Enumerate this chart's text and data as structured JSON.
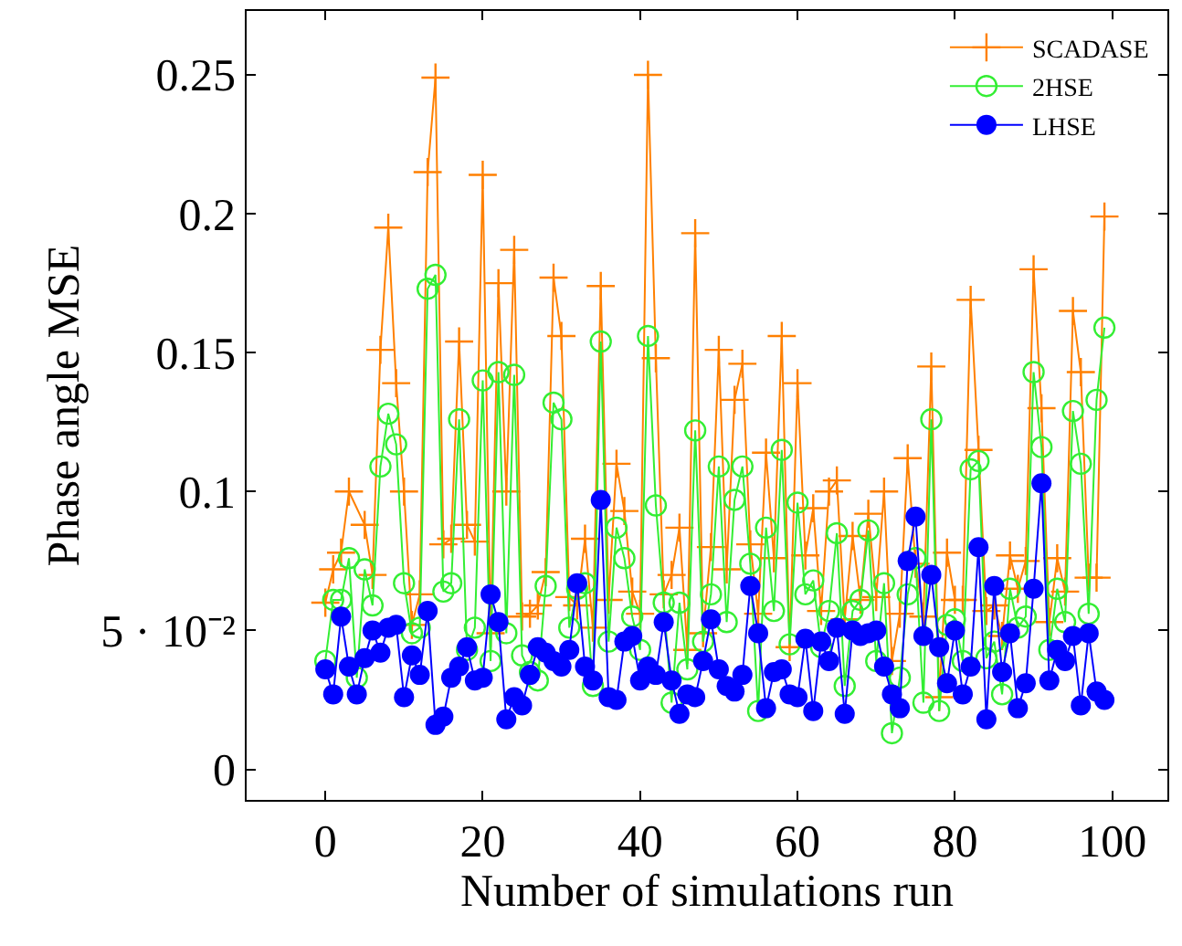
{
  "chart_data": {
    "type": "line",
    "xlabel": "Number of simulations run",
    "ylabel": "Phase angle MSE",
    "x": [
      0,
      1,
      2,
      3,
      4,
      5,
      6,
      7,
      8,
      9,
      10,
      11,
      12,
      13,
      14,
      15,
      16,
      17,
      18,
      19,
      20,
      21,
      22,
      23,
      24,
      25,
      26,
      27,
      28,
      29,
      30,
      31,
      32,
      33,
      34,
      35,
      36,
      37,
      38,
      39,
      40,
      41,
      42,
      43,
      44,
      45,
      46,
      47,
      48,
      49,
      50,
      51,
      52,
      53,
      54,
      55,
      56,
      57,
      58,
      59,
      60,
      61,
      62,
      63,
      64,
      65,
      66,
      67,
      68,
      69,
      70,
      71,
      72,
      73,
      74,
      75,
      76,
      77,
      78,
      79,
      80,
      81,
      82,
      83,
      84,
      85,
      86,
      87,
      88,
      89,
      90,
      91,
      92,
      93,
      94,
      95,
      96,
      97,
      98,
      99
    ],
    "xlim": [
      -10,
      107
    ],
    "xticks": [
      0,
      20,
      40,
      60,
      80,
      100
    ],
    "ylim": [
      -0.011,
      0.273
    ],
    "yticks": [
      0,
      {
        "value": 0.05,
        "label": "5 · 10⁻²"
      },
      0.1,
      0.15,
      0.2,
      0.25
    ],
    "legend": "top right",
    "series": [
      {
        "name": "SCADASE",
        "color": "#ff8000",
        "marker": "cross",
        "values": [
          0.06,
          0.072,
          0.078,
          0.1,
          null,
          0.088,
          0.07,
          0.151,
          0.195,
          0.139,
          0.1,
          0.052,
          0.063,
          0.215,
          0.249,
          0.081,
          0.083,
          0.154,
          0.088,
          0.082,
          0.214,
          0.049,
          0.175,
          0.1,
          0.187,
          0.055,
          0.056,
          0.059,
          0.071,
          0.177,
          0.156,
          0.062,
          0.059,
          0.083,
          0.051,
          0.174,
          0.061,
          0.11,
          0.093,
          0.064,
          0.056,
          0.25,
          0.148,
          0.063,
          0.07,
          0.087,
          0.043,
          0.193,
          0.049,
          0.08,
          0.151,
          0.072,
          0.133,
          0.146,
          0.081,
          0.056,
          0.114,
          0.076,
          0.156,
          0.044,
          0.139,
          0.077,
          0.094,
          0.057,
          0.1,
          0.104,
          0.054,
          0.084,
          0.061,
          0.092,
          0.062,
          0.1,
          0.039,
          0.056,
          0.112,
          0.074,
          0.055,
          0.145,
          0.026,
          0.078,
          0.061,
          0.061,
          0.169,
          0.115,
          0.057,
          0.059,
          0.048,
          0.077,
          0.065,
          0.075,
          0.18,
          0.13,
          0.053,
          0.076,
          0.064,
          0.165,
          0.143,
          0.069,
          0.069,
          0.199
        ]
      },
      {
        "name": "2HSE",
        "color": "#33ee33",
        "marker": "circle-open",
        "values": [
          0.039,
          0.061,
          0.061,
          0.076,
          0.033,
          0.072,
          0.059,
          0.109,
          0.128,
          0.117,
          0.067,
          0.049,
          0.051,
          0.173,
          0.178,
          0.064,
          0.067,
          0.126,
          0.043,
          0.051,
          0.14,
          0.039,
          0.143,
          0.049,
          0.142,
          0.041,
          0.035,
          0.032,
          0.066,
          0.132,
          0.126,
          0.051,
          0.065,
          0.067,
          0.03,
          0.154,
          0.046,
          0.087,
          0.076,
          0.055,
          0.043,
          0.156,
          0.095,
          0.06,
          0.024,
          0.06,
          0.036,
          0.122,
          0.046,
          0.063,
          0.109,
          0.053,
          0.097,
          0.109,
          0.074,
          0.021,
          0.087,
          0.057,
          0.115,
          0.045,
          0.096,
          0.063,
          0.068,
          0.044,
          0.057,
          0.085,
          0.03,
          0.057,
          0.061,
          0.086,
          0.039,
          0.067,
          0.013,
          0.033,
          0.063,
          0.076,
          0.024,
          0.126,
          0.021,
          0.052,
          0.054,
          0.039,
          0.108,
          0.111,
          0.04,
          0.046,
          0.027,
          0.065,
          0.051,
          0.055,
          0.143,
          0.116,
          0.043,
          0.065,
          0.053,
          0.129,
          0.11,
          0.056,
          0.133,
          0.159
        ]
      },
      {
        "name": "LHSE",
        "color": "#0000ff",
        "marker": "circle",
        "values": [
          0.036,
          0.027,
          0.055,
          0.037,
          0.027,
          0.04,
          0.05,
          0.042,
          0.051,
          0.052,
          0.026,
          0.041,
          0.034,
          0.057,
          0.016,
          0.019,
          0.033,
          0.037,
          0.044,
          0.032,
          0.033,
          0.063,
          0.053,
          0.018,
          0.026,
          0.023,
          0.034,
          0.044,
          0.042,
          0.039,
          0.037,
          0.043,
          0.067,
          0.037,
          0.032,
          0.097,
          0.026,
          0.025,
          0.046,
          0.048,
          0.032,
          0.037,
          0.034,
          0.053,
          0.032,
          0.02,
          0.027,
          0.026,
          0.039,
          0.054,
          0.036,
          0.03,
          0.028,
          0.034,
          0.066,
          0.049,
          0.022,
          0.035,
          0.036,
          0.027,
          0.026,
          0.047,
          0.021,
          0.046,
          0.039,
          0.051,
          0.02,
          0.05,
          0.048,
          0.049,
          0.05,
          0.037,
          0.027,
          0.022,
          0.075,
          0.091,
          0.048,
          0.07,
          0.044,
          0.031,
          0.05,
          0.027,
          0.037,
          0.08,
          0.018,
          0.066,
          0.035,
          0.049,
          0.022,
          0.031,
          0.065,
          0.103,
          0.032,
          0.043,
          0.039,
          0.048,
          0.023,
          0.049,
          0.028,
          0.025
        ]
      }
    ]
  }
}
